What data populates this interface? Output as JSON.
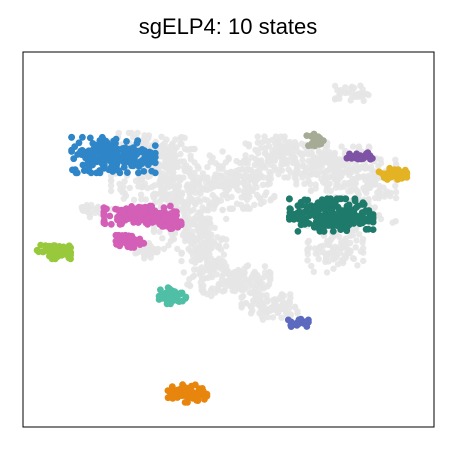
{
  "chart_data": {
    "type": "scatter",
    "title": "sgELP4: 10 states",
    "xlabel": "",
    "ylabel": "",
    "xlim": [
      0,
      100
    ],
    "ylim": [
      0,
      100
    ],
    "grid": false,
    "legend": "none",
    "axis_ticks": false,
    "background_color": "#e6e6e6",
    "background_clusters": [
      {
        "x": 30,
        "y": 73,
        "sx": 8,
        "sy": 4,
        "n": 160
      },
      {
        "x": 35,
        "y": 66,
        "sx": 10,
        "sy": 6,
        "n": 200
      },
      {
        "x": 40,
        "y": 57,
        "sx": 6,
        "sy": 7,
        "n": 170
      },
      {
        "x": 44,
        "y": 46,
        "sx": 4,
        "sy": 7,
        "n": 150
      },
      {
        "x": 52,
        "y": 39,
        "sx": 6,
        "sy": 3,
        "n": 120
      },
      {
        "x": 60,
        "y": 32,
        "sx": 5,
        "sy": 2.5,
        "n": 90
      },
      {
        "x": 53,
        "y": 65,
        "sx": 6,
        "sy": 5,
        "n": 150
      },
      {
        "x": 65,
        "y": 72,
        "sx": 8,
        "sy": 4,
        "n": 170
      },
      {
        "x": 76,
        "y": 68,
        "sx": 7,
        "sy": 5,
        "n": 170
      },
      {
        "x": 84,
        "y": 64,
        "sx": 5,
        "sy": 7,
        "n": 130
      },
      {
        "x": 76,
        "y": 48,
        "sx": 5,
        "sy": 5,
        "n": 110
      },
      {
        "x": 80,
        "y": 89,
        "sx": 3,
        "sy": 1.5,
        "n": 35
      },
      {
        "x": 30,
        "y": 47,
        "sx": 2,
        "sy": 1.5,
        "n": 30
      },
      {
        "x": 17,
        "y": 58,
        "sx": 2,
        "sy": 1.5,
        "n": 20
      }
    ],
    "series": [
      {
        "color": "#2e86c8",
        "x": 22,
        "y": 72.5,
        "sx": 7.5,
        "sy": 3.5,
        "n": 220
      },
      {
        "color": "#d35fb7",
        "x": 28.5,
        "y": 56.5,
        "sx": 6.5,
        "sy": 1.8,
        "n": 140
      },
      {
        "color": "#d35fb7",
        "x": 35.5,
        "y": 54.5,
        "sx": 2.2,
        "sy": 1.2,
        "n": 40
      },
      {
        "color": "#d35fb7",
        "x": 26,
        "y": 49.5,
        "sx": 2.5,
        "sy": 1.2,
        "n": 40
      },
      {
        "color": "#98c93c",
        "x": 7.5,
        "y": 47,
        "sx": 3,
        "sy": 1.6,
        "n": 70
      },
      {
        "color": "#4fbfa6",
        "x": 36.5,
        "y": 35,
        "sx": 2.5,
        "sy": 1.6,
        "n": 45
      },
      {
        "color": "#1e7a6a",
        "x": 75,
        "y": 56.5,
        "sx": 7.5,
        "sy": 3.2,
        "n": 220
      },
      {
        "color": "#a5ab94",
        "x": 71.5,
        "y": 76.5,
        "sx": 1.8,
        "sy": 1.2,
        "n": 25
      },
      {
        "color": "#7e53a5",
        "x": 82,
        "y": 72,
        "sx": 2.5,
        "sy": 0.9,
        "n": 25
      },
      {
        "color": "#e3b324",
        "x": 90,
        "y": 67.5,
        "sx": 2.5,
        "sy": 1.1,
        "n": 35
      },
      {
        "color": "#5b6abf",
        "x": 67,
        "y": 28,
        "sx": 1.8,
        "sy": 0.9,
        "n": 20
      },
      {
        "color": "#e8850d",
        "x": 40,
        "y": 9,
        "sx": 3.5,
        "sy": 1.8,
        "n": 70
      }
    ]
  }
}
